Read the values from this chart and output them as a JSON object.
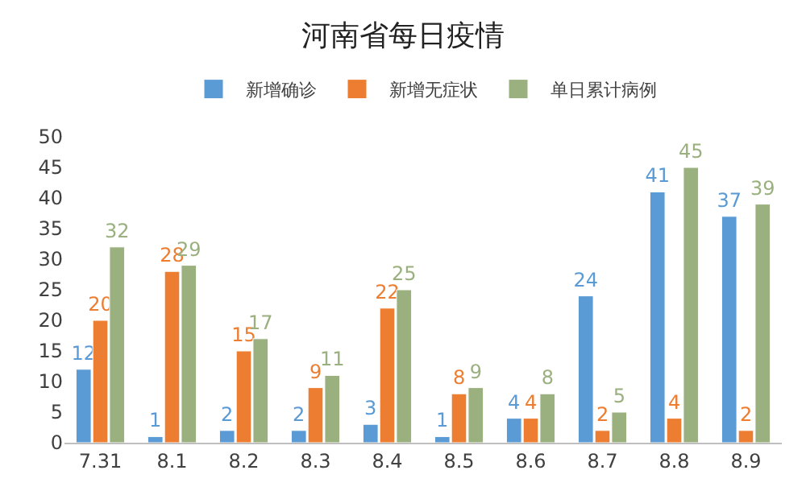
{
  "chart_data": {
    "type": "bar",
    "title": "河南省每日疫情",
    "categories": [
      "7.31",
      "8.1",
      "8.2",
      "8.3",
      "8.4",
      "8.5",
      "8.6",
      "8.7",
      "8.8",
      "8.9"
    ],
    "series": [
      {
        "name": "新增确诊",
        "color": "#5b9bd5",
        "values": [
          12,
          1,
          2,
          2,
          3,
          1,
          4,
          24,
          41,
          37
        ]
      },
      {
        "name": "新增无症状",
        "color": "#ed7d31",
        "values": [
          20,
          28,
          15,
          9,
          22,
          8,
          4,
          2,
          4,
          2
        ]
      },
      {
        "name": "单日累计病例",
        "color": "#9bb07f",
        "values": [
          32,
          29,
          17,
          11,
          25,
          9,
          8,
          5,
          45,
          39
        ]
      }
    ],
    "ylim": [
      0,
      50
    ],
    "yticks": [
      0,
      5,
      10,
      15,
      20,
      25,
      30,
      35,
      40,
      45,
      50
    ],
    "grid": false,
    "legend": "top",
    "data_labels": true
  }
}
